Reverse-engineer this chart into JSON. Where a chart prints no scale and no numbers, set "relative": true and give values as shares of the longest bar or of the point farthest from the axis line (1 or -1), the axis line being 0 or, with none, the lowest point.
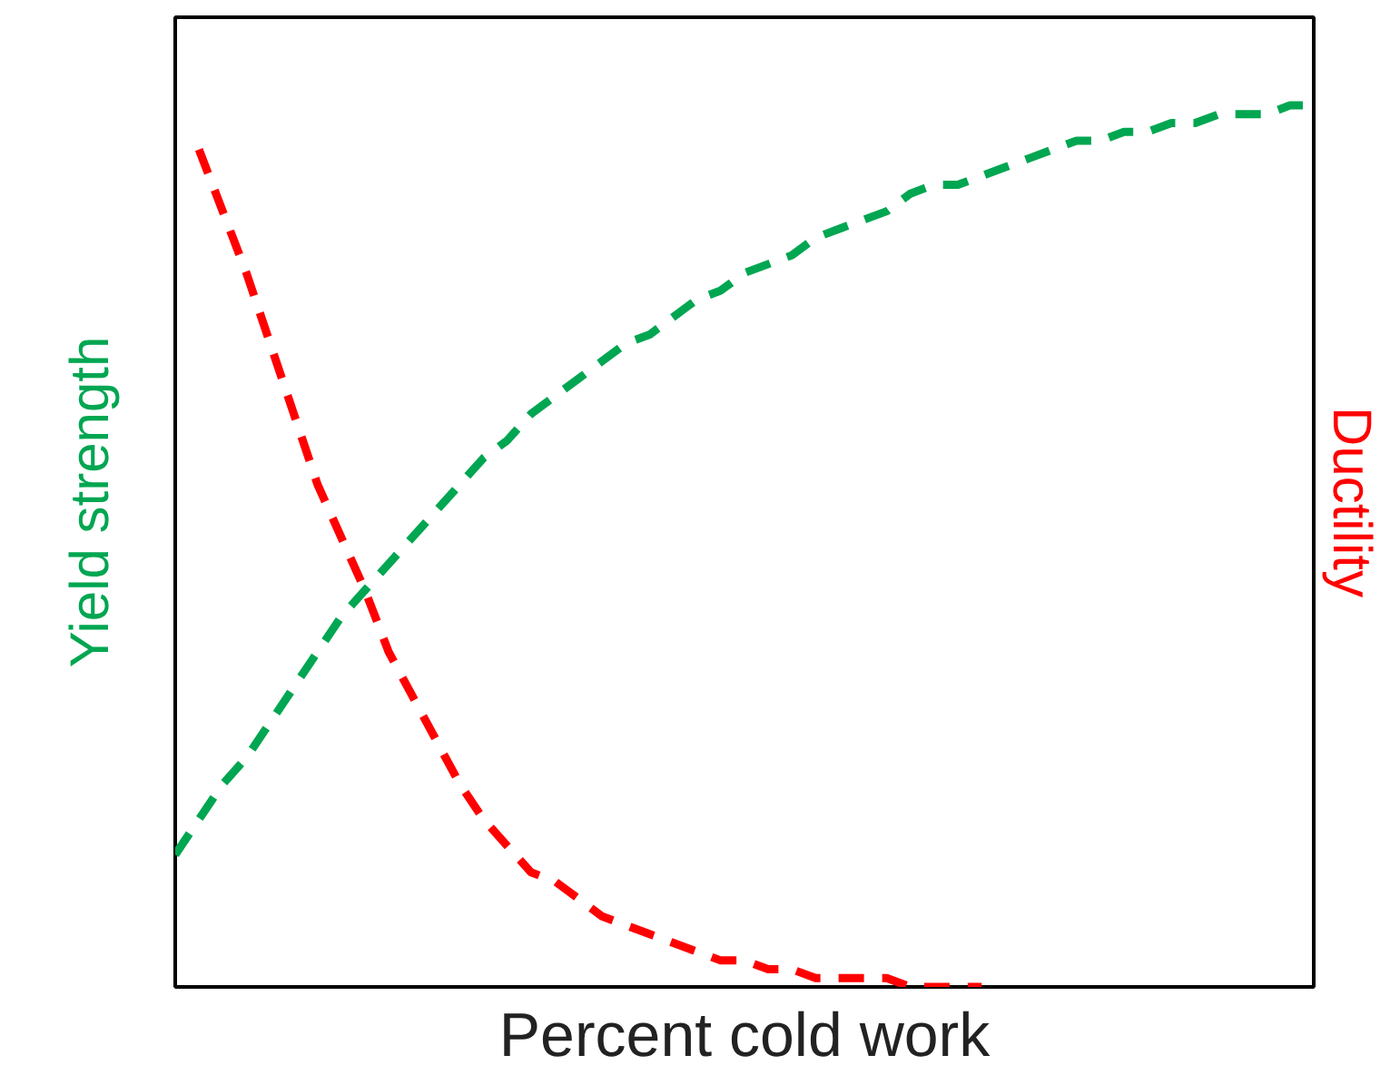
{
  "chart_data": {
    "type": "line",
    "relative": true,
    "xlabel": "Percent cold work",
    "ylabel": "Yield strength",
    "y2label": "Ductility",
    "line_style": "dashed",
    "categories": [
      null,
      null,
      null,
      null,
      null,
      null,
      null,
      null,
      null,
      null,
      null,
      null,
      null,
      null,
      null,
      null,
      null,
      null,
      null,
      null,
      null,
      null,
      null,
      null,
      null,
      null,
      null,
      null,
      null,
      null,
      null,
      null,
      null,
      null,
      null,
      null,
      null,
      null,
      null,
      null,
      null,
      null,
      null,
      null,
      null,
      null,
      null,
      null,
      null
    ],
    "series": [
      {
        "color": "#00a651",
        "values": [
          0.15,
          0.19,
          0.23,
          0.26,
          0.3,
          0.34,
          0.38,
          0.42,
          0.45,
          0.48,
          0.51,
          0.54,
          0.57,
          0.6,
          0.62,
          0.65,
          0.67,
          0.69,
          0.71,
          0.73,
          0.74,
          0.76,
          0.78,
          0.79,
          0.81,
          0.82,
          0.83,
          0.85,
          0.86,
          0.87,
          0.88,
          0.9,
          0.91,
          0.91,
          0.92,
          0.93,
          0.94,
          0.95,
          0.96,
          0.96,
          0.97,
          0.97,
          0.98,
          0.98,
          0.99,
          0.99,
          0.99,
          1.0,
          1.0
        ]
      },
      {
        "color": "#ff0000",
        "values": [
          null,
          0.95,
          0.88,
          0.81,
          0.73,
          0.65,
          0.57,
          0.51,
          0.45,
          0.38,
          0.33,
          0.28,
          0.23,
          0.19,
          0.16,
          0.13,
          0.12,
          0.1,
          0.08,
          0.07,
          0.06,
          0.05,
          0.04,
          0.03,
          0.03,
          0.02,
          0.02,
          0.01,
          0.01,
          0.01,
          0.01,
          0,
          0,
          0,
          0,
          null,
          null,
          null,
          null,
          null,
          null,
          null,
          null,
          null,
          null,
          null,
          null,
          null,
          null
        ]
      }
    ]
  }
}
